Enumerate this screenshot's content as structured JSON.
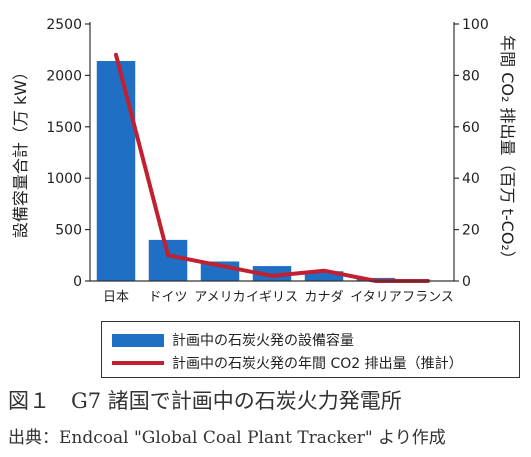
{
  "chart_data": {
    "type": "bar",
    "categories": [
      "日本",
      "ドイツ",
      "アメリカ",
      "イギリス",
      "カナダ",
      "イタリア",
      "フランス"
    ],
    "series": [
      {
        "name": "計画中の石炭火発の設備容量",
        "type": "bar",
        "axis": "left",
        "values": [
          2140,
          400,
          190,
          145,
          95,
          30,
          0
        ],
        "color": "#1f6fc5"
      },
      {
        "name": "計画中の石炭火発の年間 CO2 排出量（推計）",
        "type": "line",
        "axis": "right",
        "values": [
          88,
          10,
          6,
          2,
          4,
          0,
          0
        ],
        "color": "#c0202f"
      }
    ],
    "ylabel": "設備容量合計（万 kW）",
    "ylabel_right": "年間 CO₂ 排出量（百万 t-CO₂）",
    "ylim": [
      0,
      2500
    ],
    "ylim_right": [
      0,
      100
    ],
    "yticks": [
      "0",
      "500",
      "1000",
      "1500",
      "2000",
      "2500"
    ],
    "yticks_right": [
      "0",
      "20",
      "40",
      "60",
      "80",
      "100"
    ],
    "grid": false,
    "legend_position": "bottom"
  },
  "caption": "図１　G7 諸国で計画中の石炭火力発電所",
  "source": "出典：Endcoal \"Global Coal Plant Tracker\" より作成"
}
